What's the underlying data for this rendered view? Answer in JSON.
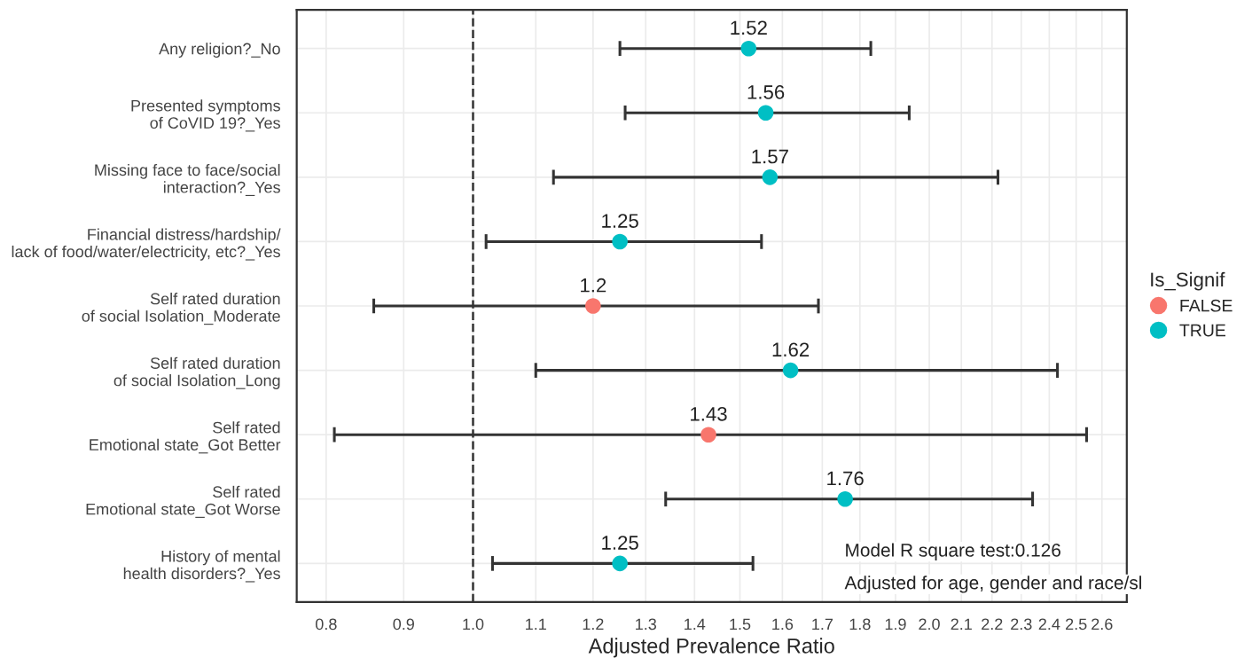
{
  "chart_data": {
    "type": "scatter",
    "orientation": "horizontal",
    "xlabel": "Adjusted Prevalence Ratio",
    "legend_title": "Is_Signif",
    "categories": [
      "Any religion?_No",
      "Presented symptoms\nof CoVID 19?_Yes",
      "Missing face to face/social\ninteraction?_Yes",
      "Financial distress/hardship/\nlack of food/water/electricity, etc?_Yes",
      "Self rated duration\nof social Isolation_Moderate",
      "Self rated duration\nof social Isolation_Long",
      "Self rated\nEmotional state_Got Better",
      "Self rated\nEmotional state_Got Worse",
      "History of mental\nhealth disorders?_Yes"
    ],
    "series": [
      {
        "name": "FALSE",
        "color": "#f8766d",
        "values": [
          null,
          null,
          null,
          null,
          1.2,
          null,
          1.43,
          null,
          null
        ],
        "errors": [
          null,
          null,
          null,
          null,
          [
            0.86,
            1.69
          ],
          null,
          [
            0.81,
            2.54
          ],
          null,
          null
        ]
      },
      {
        "name": "TRUE",
        "color": "#00bfc4",
        "values": [
          1.52,
          1.56,
          1.57,
          1.25,
          null,
          1.62,
          null,
          1.76,
          1.25
        ],
        "errors": [
          [
            1.25,
            1.83
          ],
          [
            1.26,
            1.94
          ],
          [
            1.13,
            2.22
          ],
          [
            1.02,
            1.55
          ],
          null,
          [
            1.1,
            2.43
          ],
          null,
          [
            1.34,
            2.34
          ],
          [
            1.03,
            1.53
          ]
        ]
      }
    ],
    "log": "x",
    "xlim": [
      0.765,
      2.7
    ],
    "xticks": [
      0.8,
      0.9,
      {
        "value": 1.0,
        "label": "1.0"
      },
      1.1,
      1.2,
      1.3,
      1.4,
      1.5,
      1.6,
      1.7,
      1.8,
      1.9,
      {
        "value": 2.0,
        "label": "2.0"
      },
      2.1,
      2.2,
      2.3,
      2.4,
      2.5,
      2.6
    ],
    "ref_lines": [
      {
        "axis": "x",
        "value": 1.0,
        "color": "#333333",
        "line_style": "dashed"
      }
    ],
    "annotations": [
      "Model R square test:0.126",
      "Adjusted for age, gender and race/sl"
    ],
    "data_labels": true,
    "grid": true,
    "legend": "right",
    "marker": "circle"
  }
}
